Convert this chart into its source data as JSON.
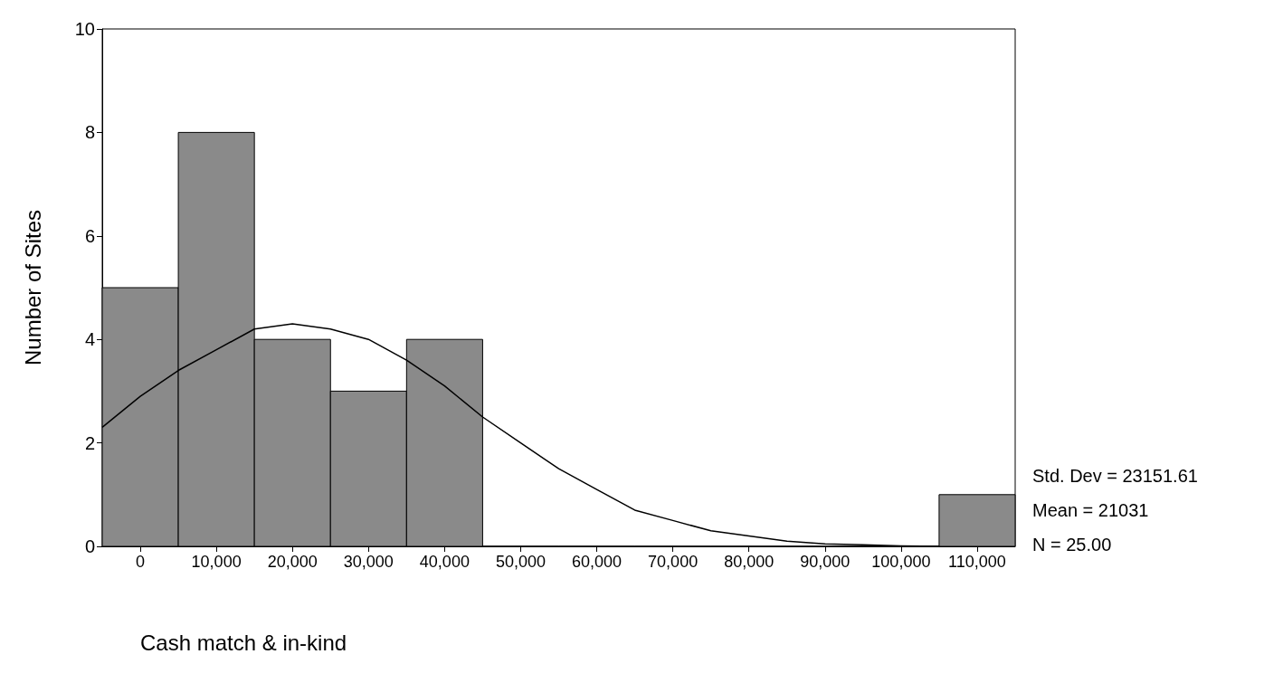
{
  "chart_data": {
    "type": "histogram",
    "xlabel": "Cash match & in-kind",
    "ylabel": "Number of Sites",
    "bins": [
      -5000,
      5000,
      15000,
      25000,
      35000,
      45000,
      55000,
      65000,
      75000,
      85000,
      95000,
      105000,
      115000
    ],
    "values": [
      5,
      8,
      4,
      3,
      4,
      0,
      0,
      0,
      0,
      0,
      0,
      1
    ],
    "color": "#8a8a8a",
    "series": [
      {
        "type": "line",
        "color": "#000000",
        "x": [
          -5000,
          0,
          5000,
          10000,
          15000,
          20000,
          25000,
          30000,
          35000,
          40000,
          45000,
          50000,
          55000,
          60000,
          65000,
          70000,
          75000,
          80000,
          85000,
          90000,
          95000,
          100000,
          105000
        ],
        "values": [
          2.3,
          2.9,
          3.4,
          3.8,
          4.2,
          4.3,
          4.2,
          4.0,
          3.6,
          3.1,
          2.5,
          2.0,
          1.5,
          1.1,
          0.7,
          0.5,
          0.3,
          0.2,
          0.1,
          0.05,
          0.03,
          0.01,
          0
        ]
      }
    ],
    "xlim": [
      -5000,
      115000
    ],
    "xticks": [
      0,
      {
        "value": 10000,
        "label": "10,000"
      },
      {
        "value": 20000,
        "label": "20,000"
      },
      {
        "value": 30000,
        "label": "30,000"
      },
      {
        "value": 40000,
        "label": "40,000"
      },
      {
        "value": 50000,
        "label": "50,000"
      },
      {
        "value": 60000,
        "label": "60,000"
      },
      {
        "value": 70000,
        "label": "70,000"
      },
      {
        "value": 80000,
        "label": "80,000"
      },
      {
        "value": 90000,
        "label": "90,000"
      },
      {
        "value": 100000,
        "label": "100,000"
      },
      {
        "value": 110000,
        "label": "110,000"
      }
    ],
    "ylim": [
      0,
      10
    ],
    "yticks": [
      0,
      2,
      4,
      6,
      8,
      10
    ],
    "grid": false,
    "marker": "none",
    "annotations": [
      "Std. Dev = 23151.61",
      "Mean = 21031",
      "N = 25.00"
    ]
  }
}
